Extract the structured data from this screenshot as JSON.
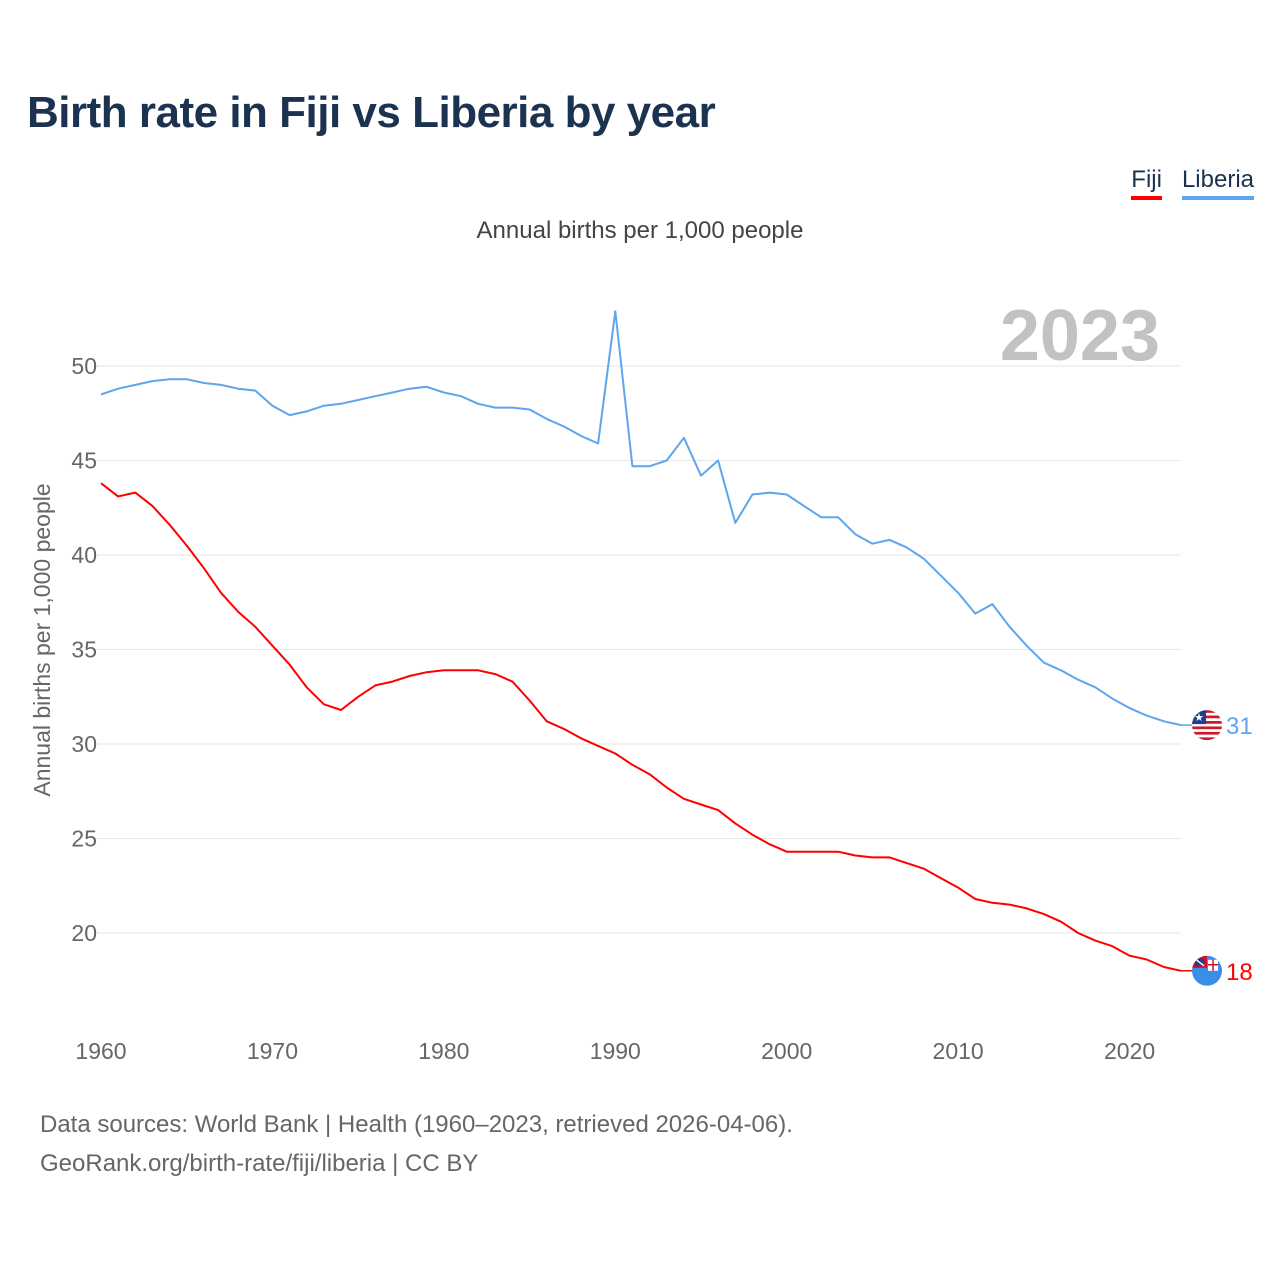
{
  "title": "Birth rate in Fiji vs Liberia by year",
  "subtitle": "Annual births per 1,000 people",
  "legend": [
    {
      "label": "Fiji",
      "color": "#ff0000"
    },
    {
      "label": "Liberia",
      "color": "#5da5ee"
    }
  ],
  "year_overlay": "2023",
  "footer": {
    "line1": "Data sources: World Bank | Health (1960–2023, retrieved 2026-04-06).",
    "line2": "GeoRank.org/birth-rate/fiji/liberia | CC BY"
  },
  "chart_data": {
    "type": "line",
    "title": "Birth rate in Fiji vs Liberia by year",
    "xlabel": "",
    "ylabel": "Annual births per 1,000 people",
    "xlim": [
      1960,
      2023
    ],
    "ylim": [
      16,
      53
    ],
    "xticks": [
      "1960",
      "1970",
      "1980",
      "1990",
      "2000",
      "2010",
      "2020"
    ],
    "yticks": [
      "20",
      "25",
      "30",
      "35",
      "40",
      "45",
      "50"
    ],
    "grid": true,
    "legend_position": "top-right",
    "x_start": 1960,
    "series": [
      {
        "name": "Fiji",
        "color": "#ff0000",
        "end_label": "18",
        "flag": "fiji-flag-icon",
        "values": [
          43.8,
          43.1,
          43.3,
          42.6,
          41.6,
          40.5,
          39.3,
          38.0,
          37.0,
          36.2,
          35.2,
          34.2,
          33.0,
          32.1,
          31.8,
          32.5,
          33.1,
          33.3,
          33.6,
          33.8,
          33.9,
          33.9,
          33.9,
          33.7,
          33.3,
          32.3,
          31.2,
          30.8,
          30.3,
          29.9,
          29.5,
          28.9,
          28.4,
          27.7,
          27.1,
          26.8,
          26.5,
          25.8,
          25.2,
          24.7,
          24.3,
          24.3,
          24.3,
          24.3,
          24.1,
          24.0,
          24.0,
          23.7,
          23.4,
          22.9,
          22.4,
          21.8,
          21.6,
          21.5,
          21.3,
          21.0,
          20.6,
          20.0,
          19.6,
          19.3,
          18.8,
          18.6,
          18.2,
          18.0
        ]
      },
      {
        "name": "Liberia",
        "color": "#5da5ee",
        "end_label": "31",
        "flag": "liberia-flag-icon",
        "values": [
          48.5,
          48.8,
          49.0,
          49.2,
          49.3,
          49.3,
          49.1,
          49.0,
          48.8,
          48.7,
          47.9,
          47.4,
          47.6,
          47.9,
          48.0,
          48.2,
          48.4,
          48.6,
          48.8,
          48.9,
          48.6,
          48.4,
          48.0,
          47.8,
          47.8,
          47.7,
          47.2,
          46.8,
          46.3,
          45.9,
          52.9,
          44.7,
          44.7,
          45.0,
          46.2,
          44.2,
          45.0,
          41.7,
          43.2,
          43.3,
          43.2,
          42.6,
          42.0,
          42.0,
          41.1,
          40.6,
          40.8,
          40.4,
          39.8,
          38.9,
          38.0,
          36.9,
          37.4,
          36.2,
          35.2,
          34.3,
          33.9,
          33.4,
          33.0,
          32.4,
          31.9,
          31.5,
          31.2,
          31.0
        ]
      }
    ]
  }
}
